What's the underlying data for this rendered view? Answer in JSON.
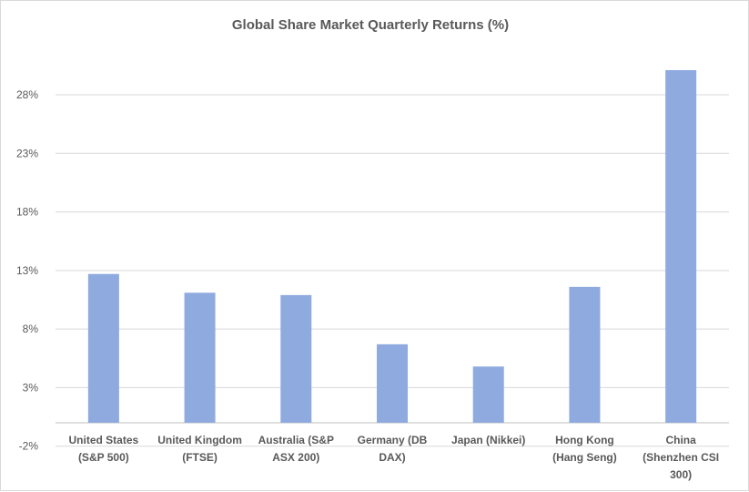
{
  "chart_data": {
    "type": "bar",
    "title": "Global Share Market Quarterly Returns (%)",
    "xlabel": "",
    "ylabel": "",
    "ylim": [
      -2,
      33
    ],
    "yticks": [
      "-2%",
      "3%",
      "8%",
      "13%",
      "18%",
      "23%",
      "28%"
    ],
    "ytick_values": [
      -2,
      3,
      8,
      13,
      18,
      23,
      28
    ],
    "grid": true,
    "bar_color": "#8eaadf",
    "categories": [
      [
        "United States",
        "(S&P 500)"
      ],
      [
        "United Kingdom",
        "(FTSE)"
      ],
      [
        "Australia (S&P",
        "ASX 200)"
      ],
      [
        "Germany (DB",
        "DAX)"
      ],
      [
        "Japan (Nikkei)"
      ],
      [
        "Hong Kong",
        "(Hang Seng)"
      ],
      [
        "China",
        "(Shenzhen CSI",
        "300)"
      ]
    ],
    "values": [
      12.7,
      11.1,
      10.9,
      6.7,
      4.8,
      11.6,
      30.1
    ]
  }
}
